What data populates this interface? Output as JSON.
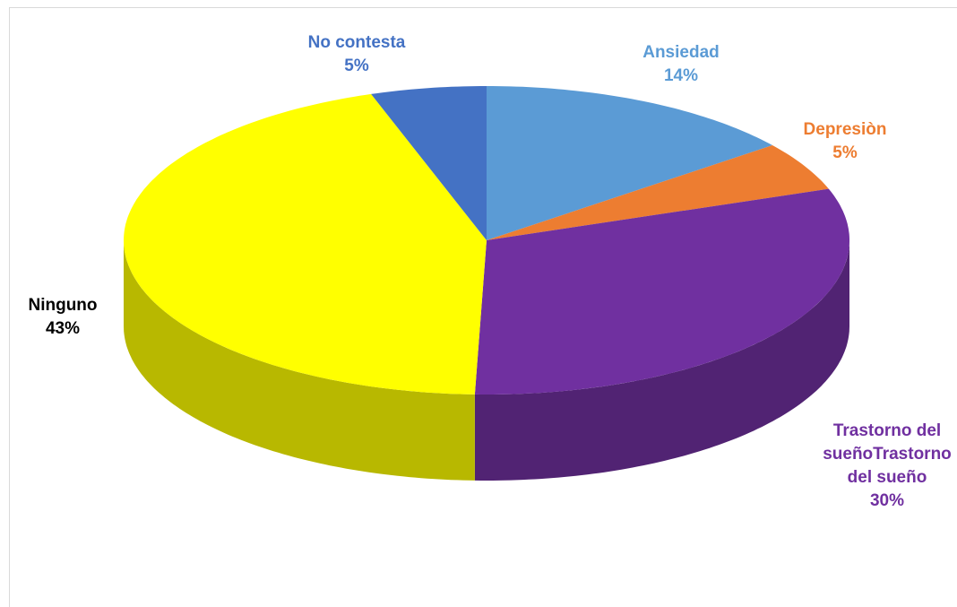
{
  "chart_data": {
    "type": "pie",
    "categories": [
      "Ansiedad",
      "Depresiòn",
      "Trastorno del sueñoTrastorno del sueño",
      "Ninguno",
      "No contesta"
    ],
    "values": [
      14,
      5,
      30,
      43,
      5
    ],
    "value_labels": [
      "14%",
      "5%",
      "30%",
      "43%",
      "5%"
    ],
    "colors": [
      "#5b9bd5",
      "#ed7d31",
      "#7030a0",
      "#ffff00",
      "#4472c4"
    ],
    "label_colors": [
      "#5b9bd5",
      "#ed7d31",
      "#7030a0",
      "#000000",
      "#4472c4"
    ]
  }
}
